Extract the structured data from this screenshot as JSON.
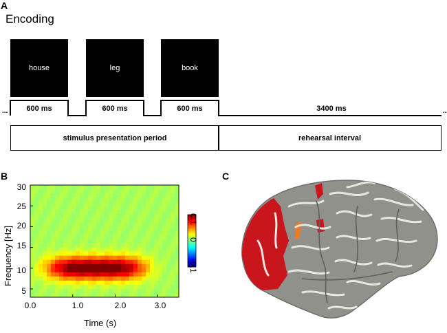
{
  "panel_a": {
    "letter": "A",
    "title": "Encoding",
    "stimuli": [
      {
        "word": "house",
        "duration": "600 ms"
      },
      {
        "word": "leg",
        "duration": "600 ms"
      },
      {
        "word": "book",
        "duration": "600 ms"
      }
    ],
    "rehearsal_duration": "3400 ms",
    "ellipsis": "...",
    "period_labels": {
      "stimulus": "stimulus presentation period",
      "rehearsal": "rehearsal interval"
    }
  },
  "panel_b": {
    "letter": "B",
    "chart_data": {
      "type": "heatmap",
      "xlabel": "Time (s)",
      "ylabel": "Frequency [Hz]",
      "xlim": [
        0.0,
        3.5
      ],
      "ylim": [
        3,
        30
      ],
      "xticks": [
        "0.0",
        "1.0",
        "2.0",
        "3.0"
      ],
      "yticks": [
        "30",
        "25",
        "20",
        "15",
        "10",
        "5"
      ],
      "colorbar": {
        "ticks": [
          "0.1",
          "0",
          "-0.1"
        ],
        "range": [
          -0.1,
          0.1
        ],
        "colormap": "jet"
      },
      "blob": {
        "center_time": 1.55,
        "center_freq": 10,
        "time_extent": [
          0.3,
          2.9
        ],
        "freq_extent": [
          7,
          14
        ],
        "peak": 0.1
      }
    }
  },
  "panel_c": {
    "letter": "C",
    "colors": {
      "cortex": "#8f918a",
      "sulcus": "#6e706a",
      "activation": "#c8161c",
      "activation_edge": "#ee7b22"
    }
  }
}
